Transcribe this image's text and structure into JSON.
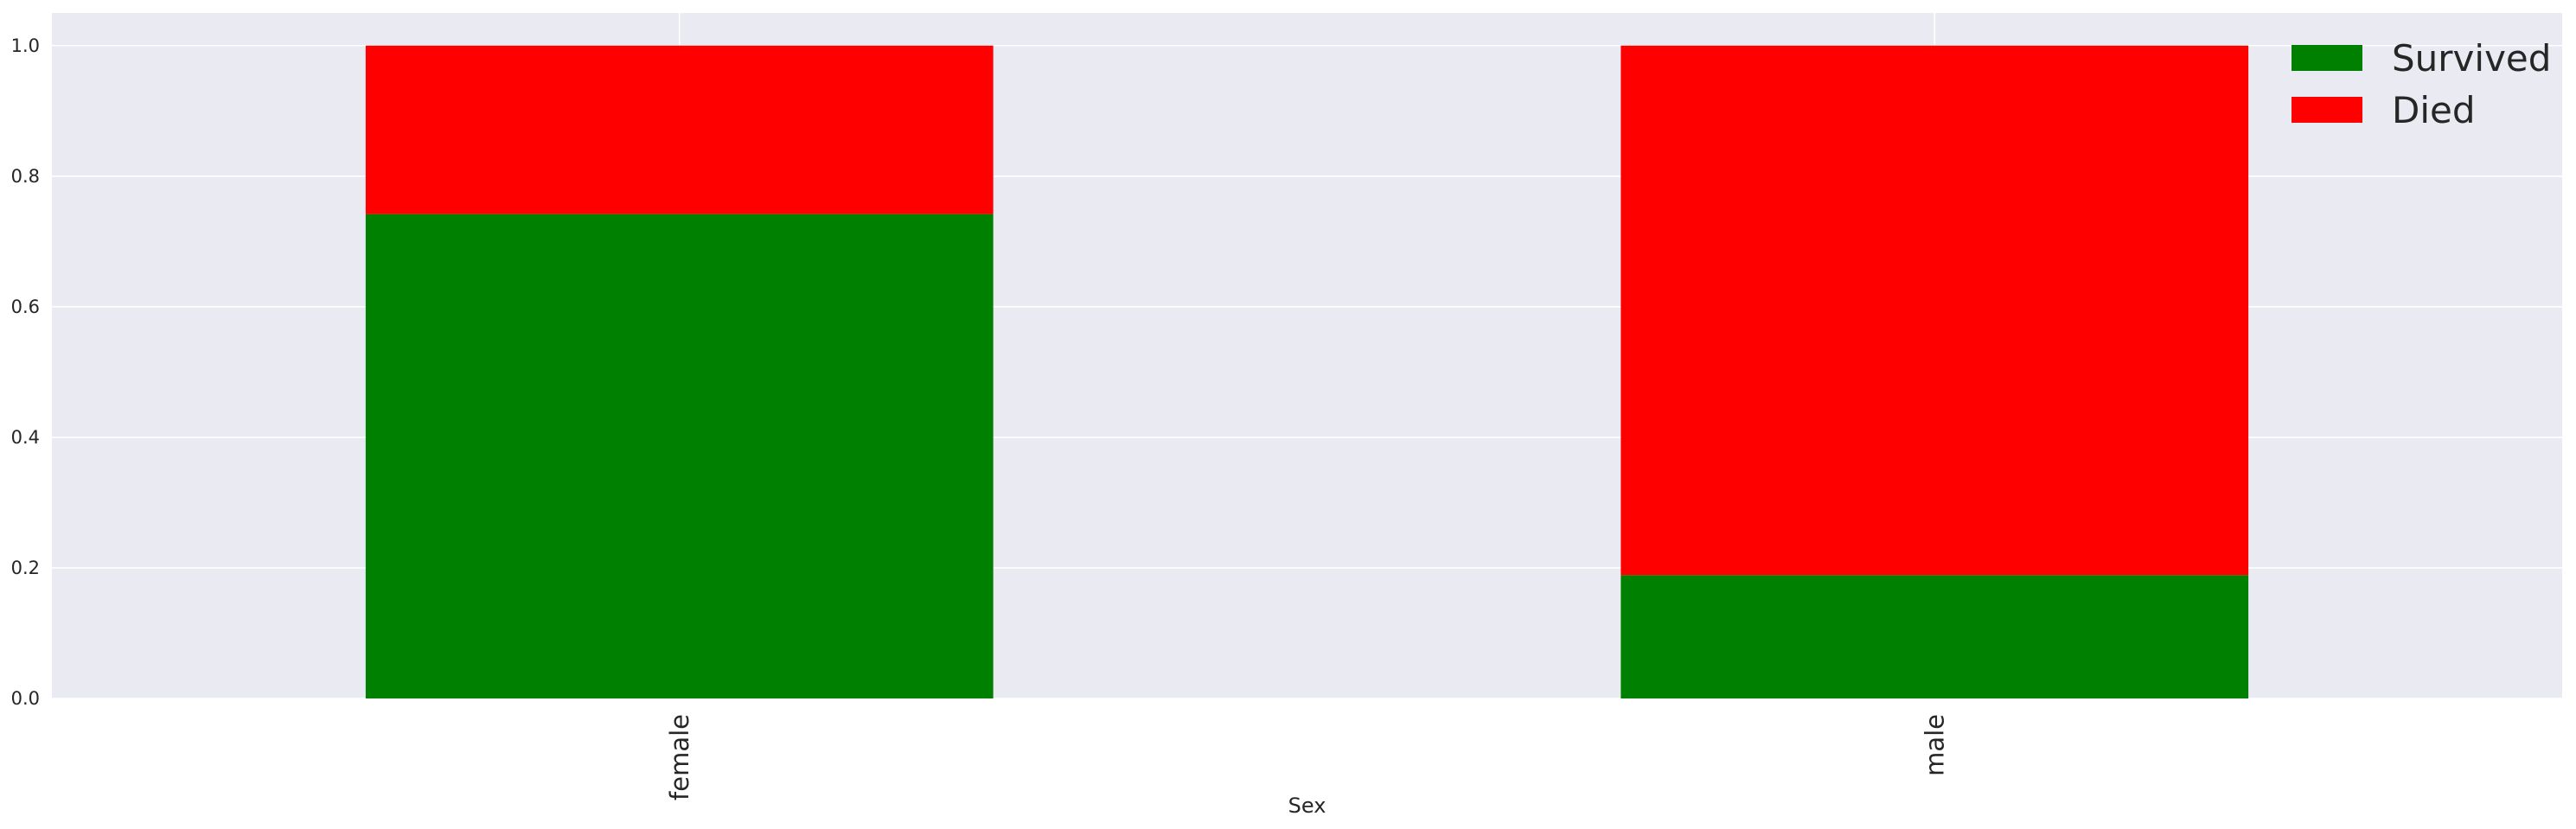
{
  "chart_data": {
    "type": "bar",
    "stacked": true,
    "categories": [
      "female",
      "male"
    ],
    "series": [
      {
        "name": "Survived",
        "color": "#008000",
        "values": [
          0.742,
          0.189
        ]
      },
      {
        "name": "Died",
        "color": "#ff0000",
        "values": [
          0.258,
          0.811
        ]
      }
    ],
    "xlabel": "Sex",
    "ylabel": "",
    "ylim": [
      0,
      1.05
    ],
    "yticks": [
      "0.0",
      "0.2",
      "0.4",
      "0.6",
      "0.8",
      "1.0"
    ],
    "ytick_values": [
      0,
      0.2,
      0.4,
      0.6,
      0.8,
      1.0
    ],
    "xtick_rotation": "vertical",
    "grid": true,
    "legend_position": "top-right",
    "background_color": "#eaeaf2",
    "grid_color": "#ffffff"
  }
}
